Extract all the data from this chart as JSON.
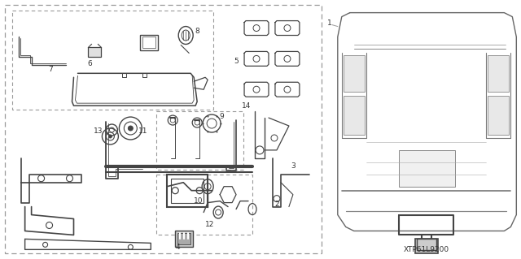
{
  "bg_color": "#ffffff",
  "fig_width": 6.4,
  "fig_height": 3.19,
  "dpi": 100,
  "diagram_code": "XTP61L9200",
  "lc": "#444444",
  "blc": "#999999",
  "tc": "#333333",
  "label_fontsize": 6.5,
  "code_fontsize": 6.5
}
